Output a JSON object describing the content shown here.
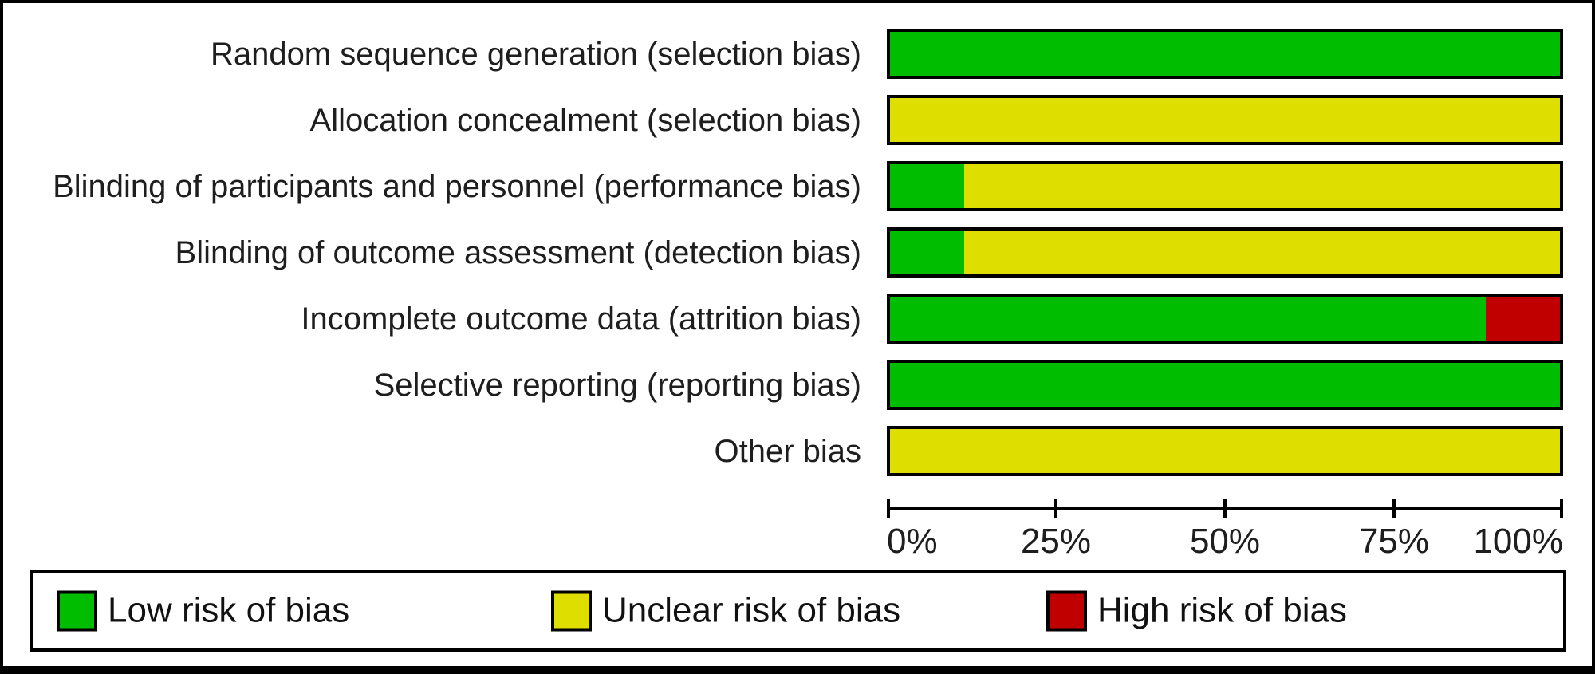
{
  "colors": {
    "low": "#00bd00",
    "unclear": "#dede00",
    "high": "#c00000",
    "border": "#000000",
    "text": "#1e1e1e"
  },
  "rows": [
    {
      "label": "Random sequence generation (selection bias)",
      "segments": [
        {
          "level": "low",
          "pct": 100
        }
      ]
    },
    {
      "label": "Allocation concealment (selection bias)",
      "segments": [
        {
          "level": "unclear",
          "pct": 100
        }
      ]
    },
    {
      "label": "Blinding of participants and personnel (performance bias)",
      "segments": [
        {
          "level": "low",
          "pct": 11.1
        },
        {
          "level": "unclear",
          "pct": 88.9
        }
      ]
    },
    {
      "label": "Blinding of outcome assessment (detection bias)",
      "segments": [
        {
          "level": "low",
          "pct": 11.1
        },
        {
          "level": "unclear",
          "pct": 88.9
        }
      ]
    },
    {
      "label": "Incomplete outcome data (attrition bias)",
      "segments": [
        {
          "level": "low",
          "pct": 88.9
        },
        {
          "level": "high",
          "pct": 11.1
        }
      ]
    },
    {
      "label": "Selective reporting (reporting bias)",
      "segments": [
        {
          "level": "low",
          "pct": 100
        }
      ]
    },
    {
      "label": "Other bias",
      "segments": [
        {
          "level": "unclear",
          "pct": 100
        }
      ]
    }
  ],
  "axis": {
    "tick_labels": [
      "0%",
      "25%",
      "50%",
      "75%",
      "100%"
    ]
  },
  "legend": {
    "items": [
      {
        "level": "low",
        "label": "Low risk of bias"
      },
      {
        "level": "unclear",
        "label": "Unclear risk of bias"
      },
      {
        "level": "high",
        "label": "High risk of bias"
      }
    ]
  },
  "chart_data": {
    "type": "bar",
    "orientation": "horizontal",
    "stacked": true,
    "categories": [
      "Random sequence generation (selection bias)",
      "Allocation concealment (selection bias)",
      "Blinding of participants and personnel (performance bias)",
      "Blinding of outcome assessment (detection bias)",
      "Incomplete outcome data (attrition bias)",
      "Selective reporting (reporting bias)",
      "Other bias"
    ],
    "series": [
      {
        "name": "Low risk of bias",
        "color": "#00bd00",
        "values": [
          100,
          0,
          11.1,
          11.1,
          88.9,
          100,
          0
        ]
      },
      {
        "name": "Unclear risk of bias",
        "color": "#dede00",
        "values": [
          0,
          100,
          88.9,
          88.9,
          0,
          0,
          100
        ]
      },
      {
        "name": "High risk of bias",
        "color": "#c00000",
        "values": [
          0,
          0,
          0,
          0,
          11.1,
          0,
          0
        ]
      }
    ],
    "xlabel": "",
    "ylabel": "",
    "x_tick_labels": [
      "0%",
      "25%",
      "50%",
      "75%",
      "100%"
    ],
    "xlim": [
      0,
      100
    ],
    "grid": false,
    "legend_position": "bottom"
  }
}
